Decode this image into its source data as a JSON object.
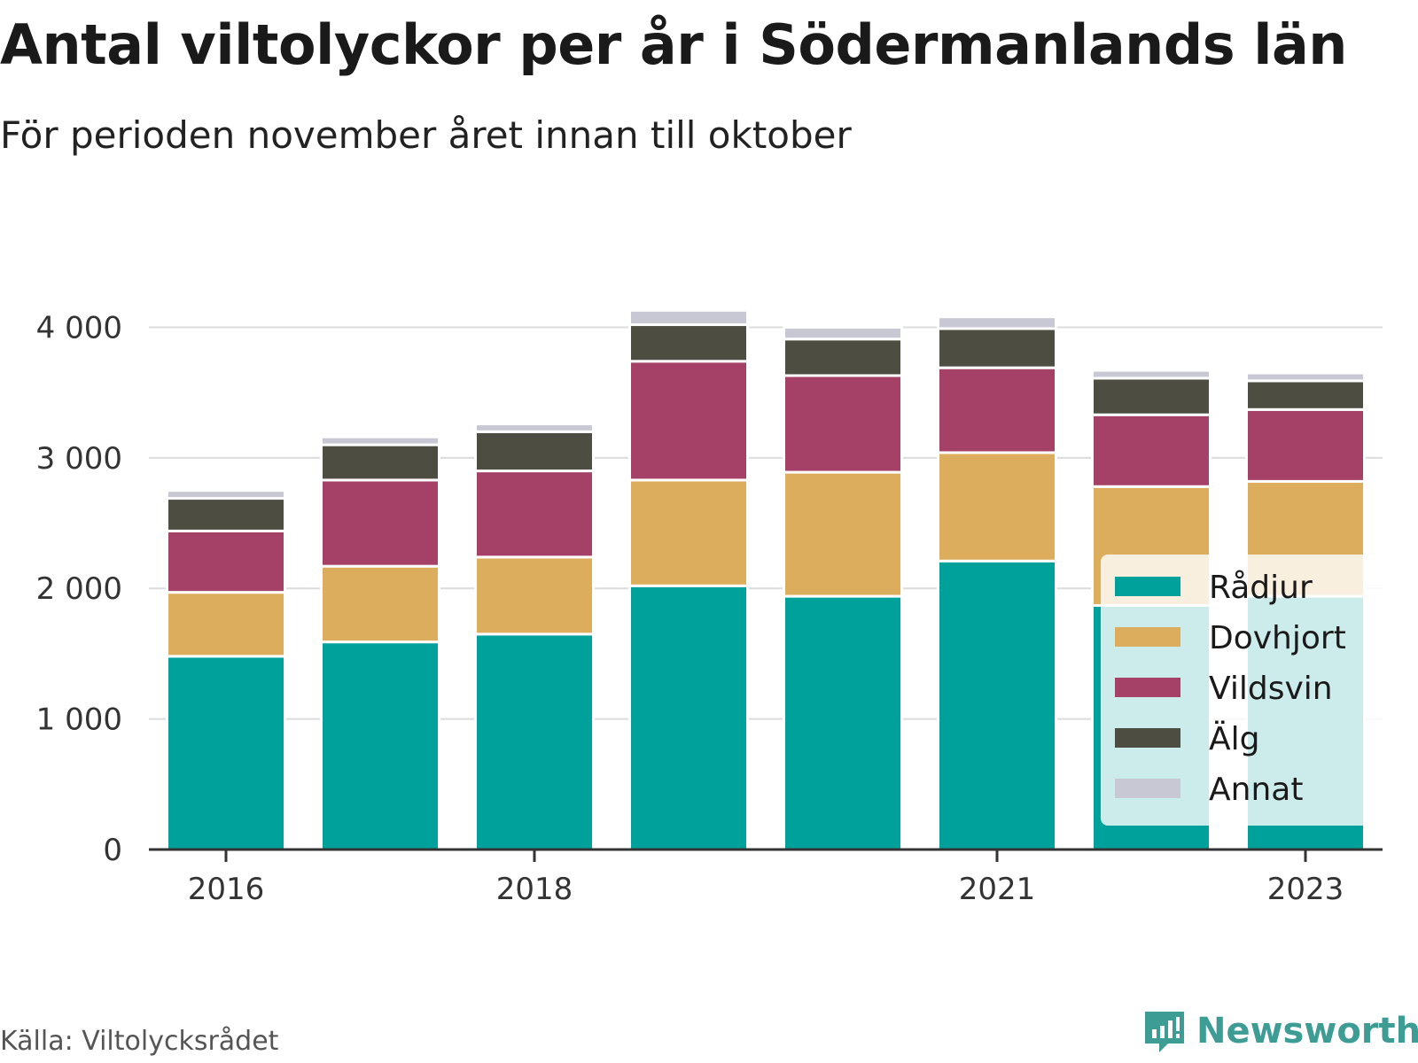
{
  "header": {
    "title": "Antal viltolyckor per år i Södermanlands län",
    "subtitle": "För perioden november året innan till oktober"
  },
  "footer": {
    "source": "Källa: Viltolycksrådet",
    "brand": "Newsworthy",
    "brand_icon": "newsworthy-logo-icon",
    "brand_color": "#3d9c94"
  },
  "chart_data": {
    "type": "bar",
    "stacked": true,
    "x": [
      2016,
      2017,
      2018,
      2019,
      2020,
      2021,
      2022,
      2023
    ],
    "x_tick_labels": [
      "2016",
      "2018",
      "2021",
      "2023"
    ],
    "x_tick_values": [
      2016,
      2018,
      2021,
      2023
    ],
    "ylim": [
      0,
      4200
    ],
    "y_ticks": [
      0,
      1000,
      2000,
      3000,
      4000
    ],
    "y_tick_labels": [
      "0",
      "1 000",
      "2 000",
      "3 000",
      "4 000"
    ],
    "grid": true,
    "legend_position": "bottom-right",
    "series": [
      {
        "name": "Rådjur",
        "color": "#00a19a",
        "values": [
          1480,
          1590,
          1650,
          2020,
          1940,
          2210,
          1870,
          1940
        ]
      },
      {
        "name": "Dovhjort",
        "color": "#dcad5c",
        "values": [
          490,
          580,
          590,
          810,
          950,
          830,
          910,
          880
        ]
      },
      {
        "name": "Vildsvin",
        "color": "#a54067",
        "values": [
          470,
          660,
          660,
          910,
          740,
          650,
          550,
          550
        ]
      },
      {
        "name": "Älg",
        "color": "#4d4e41",
        "values": [
          250,
          270,
          300,
          280,
          280,
          300,
          280,
          220
        ]
      },
      {
        "name": "Annat",
        "color": "#c8c7d4",
        "values": [
          60,
          60,
          60,
          110,
          90,
          90,
          60,
          60
        ]
      }
    ]
  }
}
